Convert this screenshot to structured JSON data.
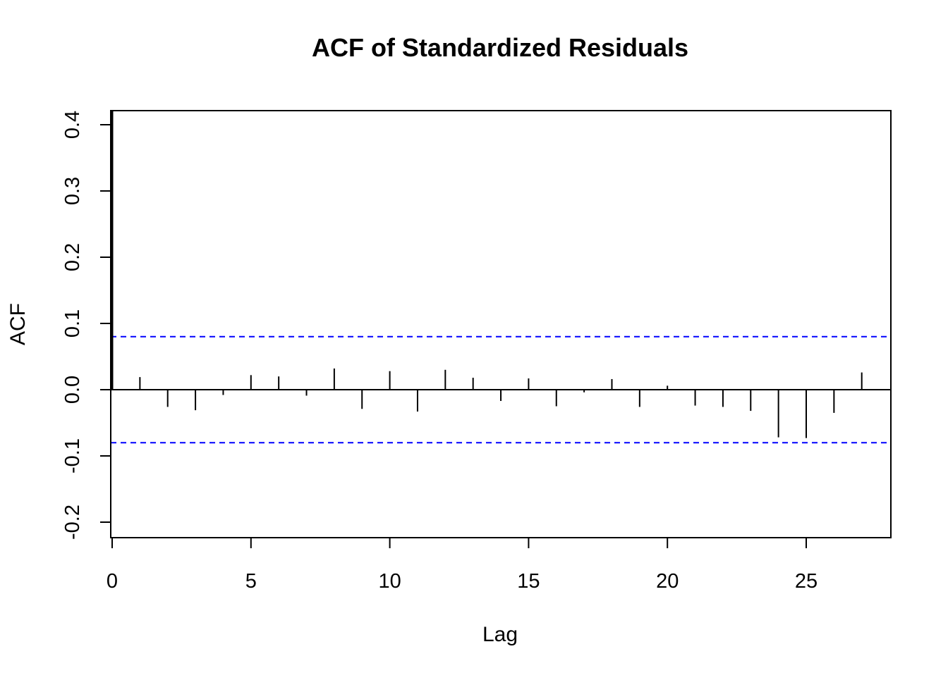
{
  "chart_data": {
    "type": "bar",
    "title": "ACF of Standardized Residuals",
    "xlabel": "Lag",
    "ylabel": "ACF",
    "xlim": [
      0,
      28
    ],
    "ylim": [
      -0.22,
      0.42
    ],
    "x_ticks": [
      0,
      5,
      10,
      15,
      20,
      25
    ],
    "y_ticks": [
      -0.2,
      -0.1,
      0.0,
      0.1,
      0.2,
      0.3,
      0.4
    ],
    "y_tick_labels": [
      "-0.2",
      "-0.1",
      "0.0",
      "0.1",
      "0.2",
      "0.3",
      "0.4"
    ],
    "confidence_bound": 0.08,
    "confidence_color": "#0000ff",
    "bar_color": "#000000",
    "lags": [
      0,
      1,
      2,
      3,
      4,
      5,
      6,
      7,
      8,
      9,
      10,
      11,
      12,
      13,
      14,
      15,
      16,
      17,
      18,
      19,
      20,
      21,
      22,
      23,
      24,
      25,
      26,
      27
    ],
    "acf": [
      0.422,
      0.019,
      -0.026,
      -0.031,
      -0.008,
      0.022,
      0.02,
      -0.009,
      0.032,
      -0.029,
      0.028,
      -0.033,
      0.03,
      0.018,
      -0.017,
      0.017,
      -0.025,
      -0.004,
      0.016,
      -0.026,
      0.006,
      -0.024,
      -0.026,
      -0.032,
      -0.072,
      -0.073,
      -0.035,
      0.026
    ]
  }
}
